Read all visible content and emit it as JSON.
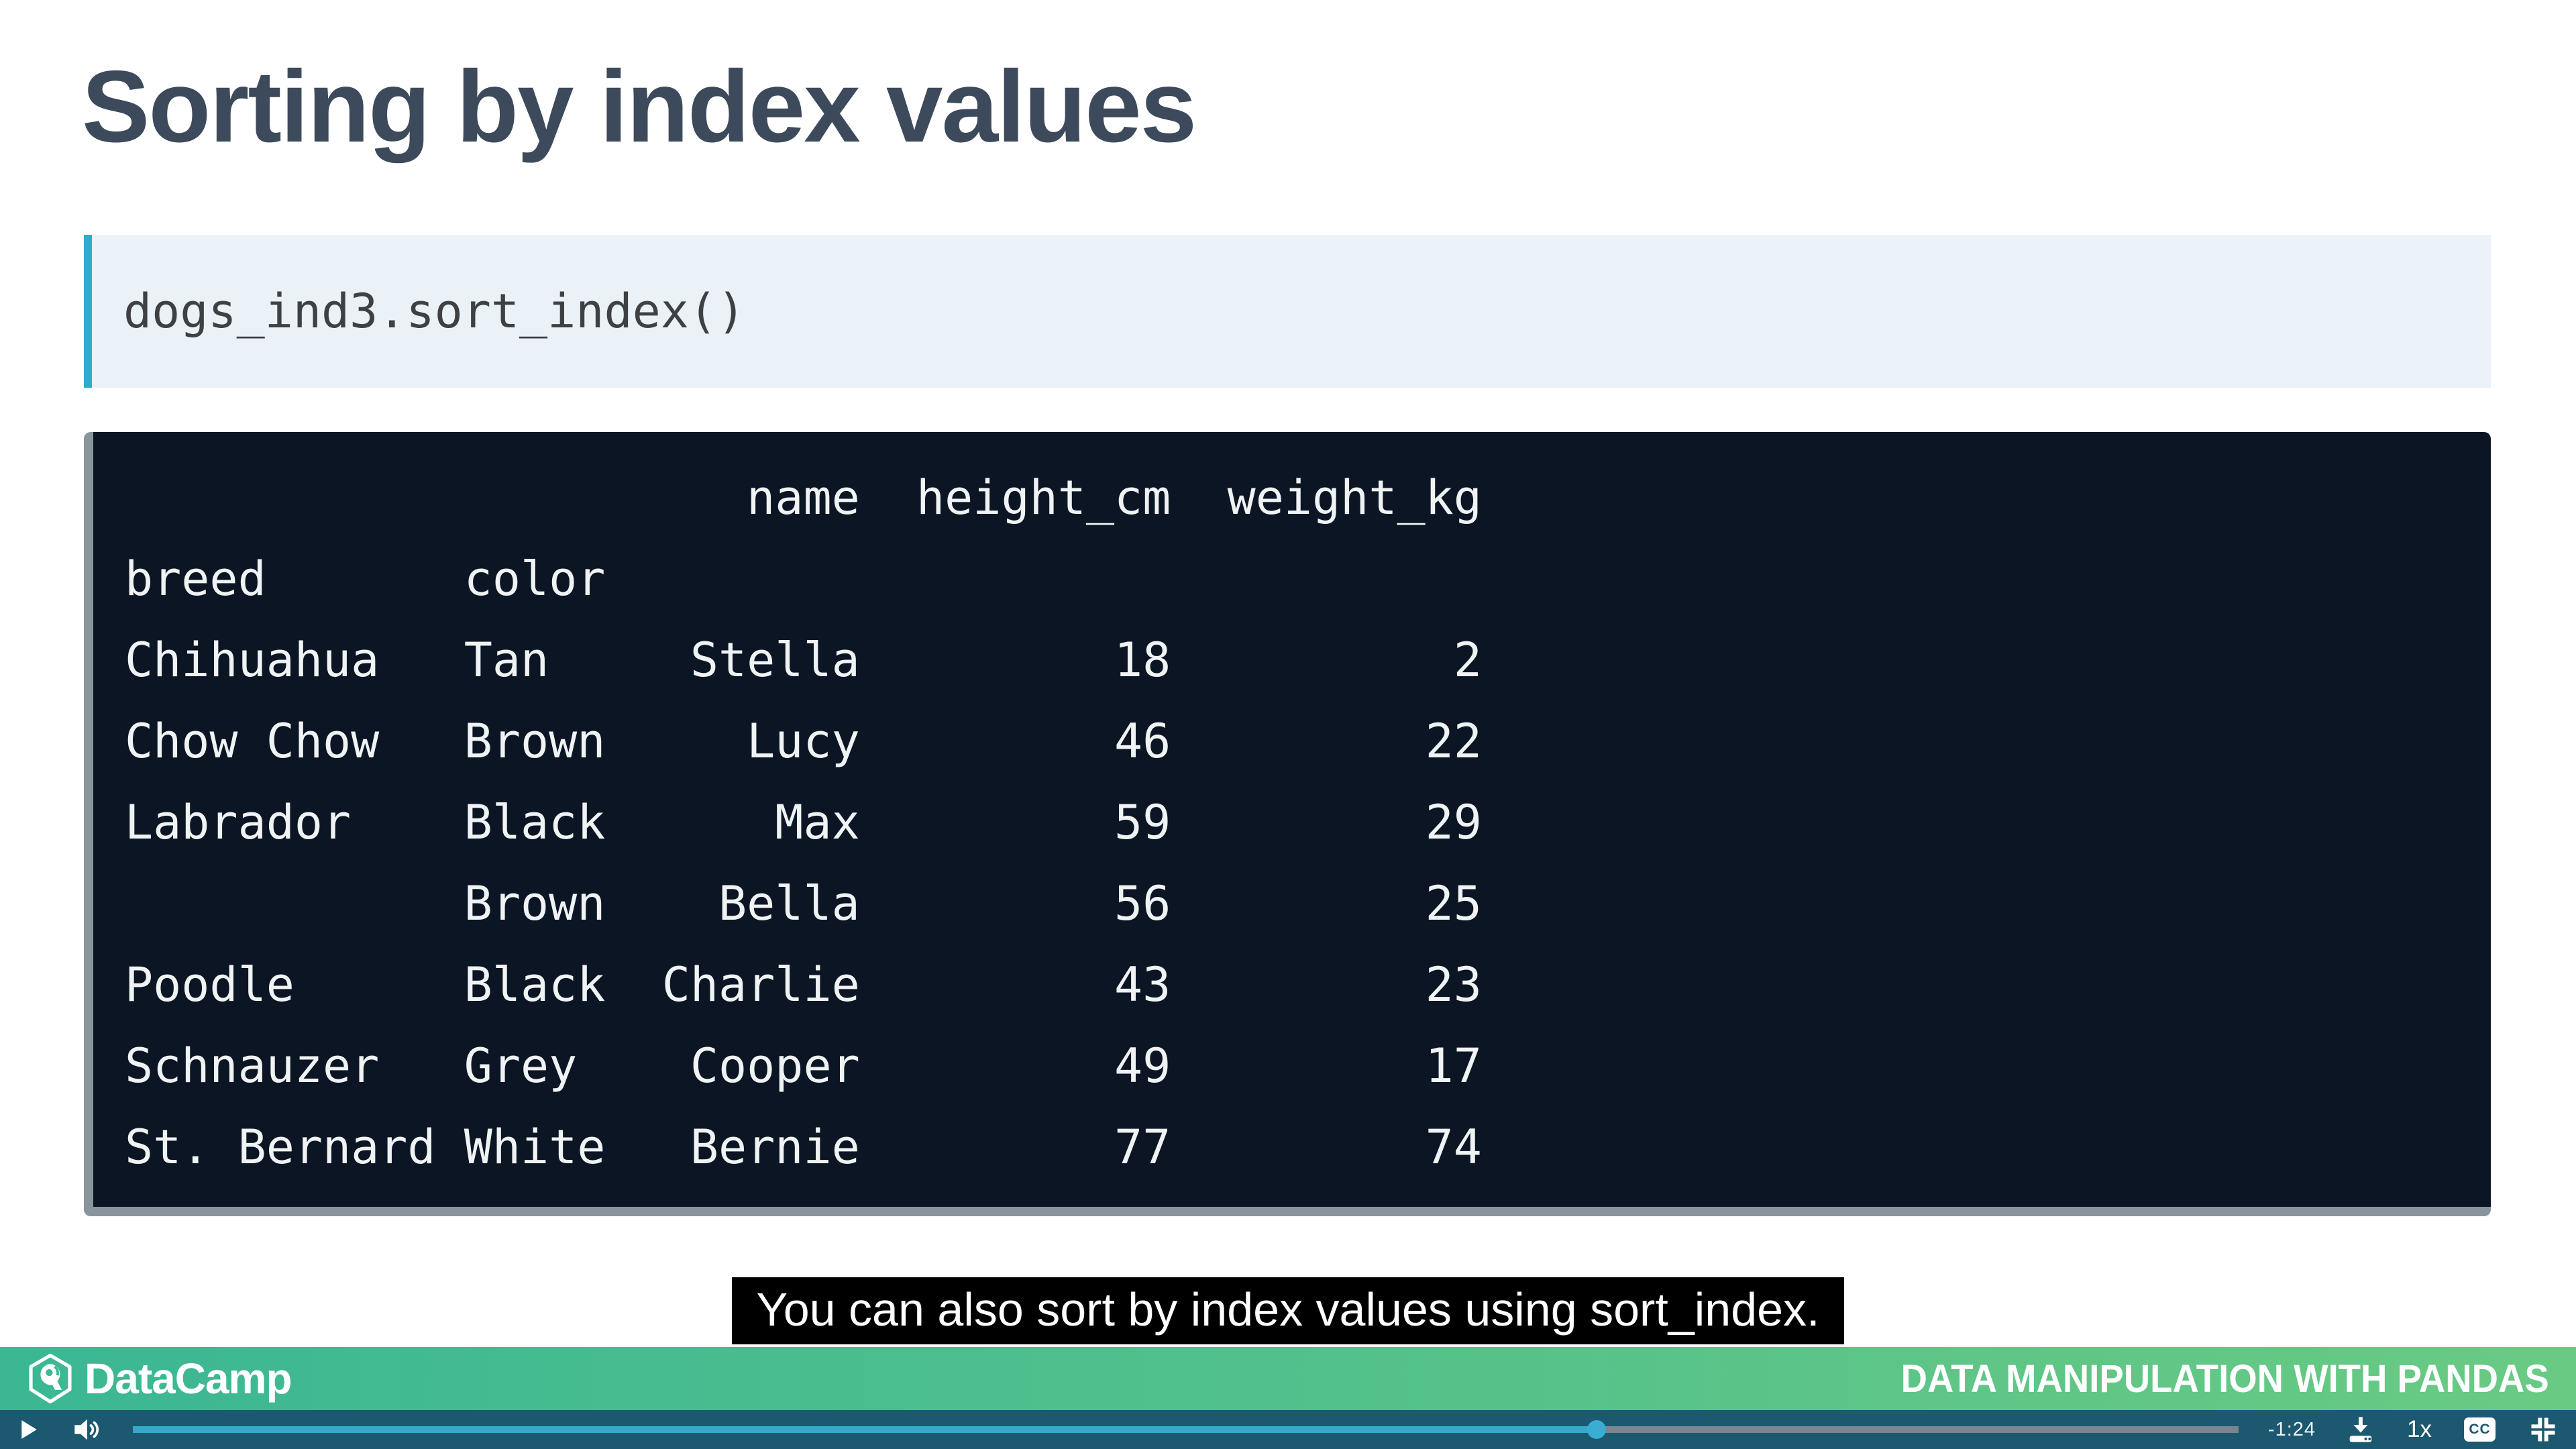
{
  "slide": {
    "title": "Sorting by index values",
    "code_block": {
      "code": "dogs_ind3.sort_index()"
    },
    "output": {
      "columns": [
        "name",
        "height_cm",
        "weight_kg"
      ],
      "index_names": [
        "breed",
        "color"
      ],
      "rows": [
        [
          "Chihuahua",
          "Tan",
          "Stella",
          "18",
          "2"
        ],
        [
          "Chow Chow",
          "Brown",
          "Lucy",
          "46",
          "22"
        ],
        [
          "Labrador",
          "Black",
          "Max",
          "59",
          "29"
        ],
        [
          "",
          "Brown",
          "Bella",
          "56",
          "25"
        ],
        [
          "Poodle",
          "Black",
          "Charlie",
          "43",
          "23"
        ],
        [
          "Schnauzer",
          "Grey",
          "Cooper",
          "49",
          "17"
        ],
        [
          "St. Bernard",
          "White",
          "Bernie",
          "77",
          "74"
        ]
      ]
    }
  },
  "caption": {
    "text": "You can also sort by index values using sort_index."
  },
  "footer": {
    "brand": "DataCamp",
    "course_title": "DATA MANIPULATION WITH PANDAS"
  },
  "player": {
    "time_remaining": "-1:24",
    "playback_speed": "1x",
    "cc_label": "CC",
    "progress_percent": 69.5,
    "icons": {
      "play": "play-icon",
      "volume": "volume-icon",
      "download": "download-icon",
      "captions": "cc-icon",
      "shrink": "exit-fullscreen-icon"
    }
  },
  "colors": {
    "title_text": "#3d4a5b",
    "code_accent": "#2fabce",
    "code_bg": "#ebf2f7",
    "terminal_bg": "#0c1524",
    "terminal_edge": "#8a949c",
    "caption_bg": "#000000",
    "footer_gradient_start": "#3bb794",
    "footer_gradient_end": "#69ca83",
    "player_bar_bg": "#1c5870",
    "progress_played": "#33a9cc",
    "progress_track": "#7b8590"
  }
}
